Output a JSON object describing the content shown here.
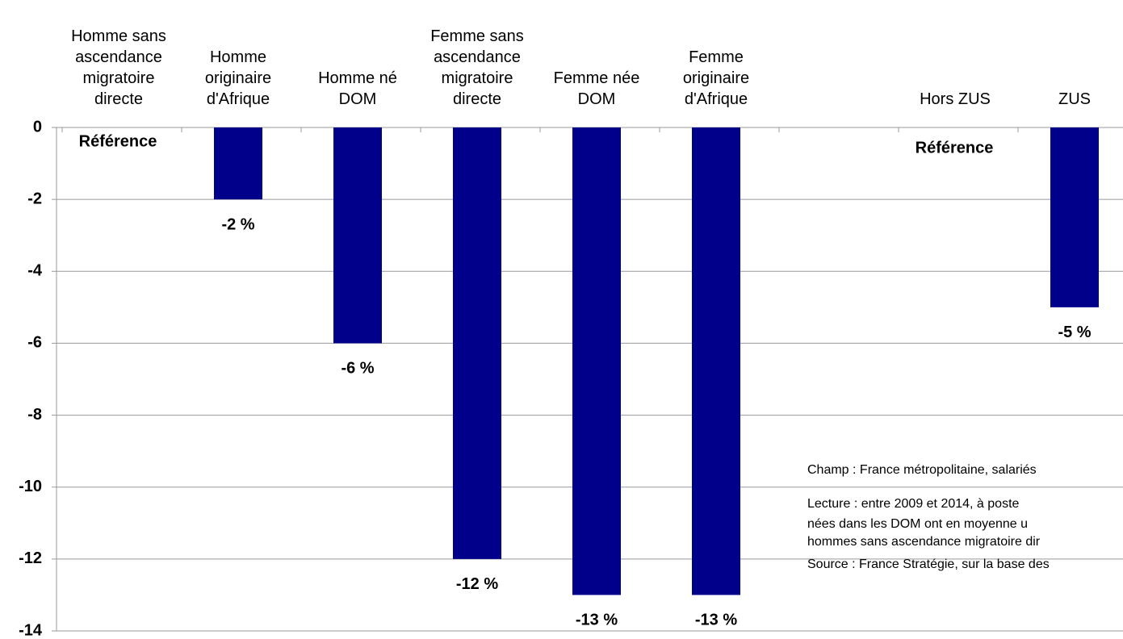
{
  "chart_data": {
    "type": "bar",
    "categories": [
      "Homme sans ascendance migratoire directe",
      "Homme originaire d'Afrique",
      "Homme né DOM",
      "Femme sans ascendance migratoire directe",
      "Femme née DOM",
      "Femme originaire d'Afrique",
      null,
      "Hors ZUS",
      "ZUS"
    ],
    "values": [
      0,
      -2,
      -6,
      -12,
      -13,
      -13,
      null,
      0,
      -5
    ],
    "value_labels": [
      "Référence",
      "-2 %",
      "-6 %",
      "-12 %",
      "-13 %",
      "-13 %",
      null,
      "Référence",
      "-5 %"
    ],
    "color": "#00008b",
    "ylim": [
      -14,
      0
    ],
    "yticks": [
      0,
      -2,
      -4,
      -6,
      -8,
      -10,
      -12,
      -14
    ],
    "grid": true,
    "notes": [
      "Champ : France métropolitaine, salariés",
      "Lecture : entre 2009 et 2014, à poste",
      "nées dans les DOM ont en moyenne u",
      "hommes sans ascendance migratoire dir",
      "Source : France Stratégie, sur la base des"
    ]
  }
}
